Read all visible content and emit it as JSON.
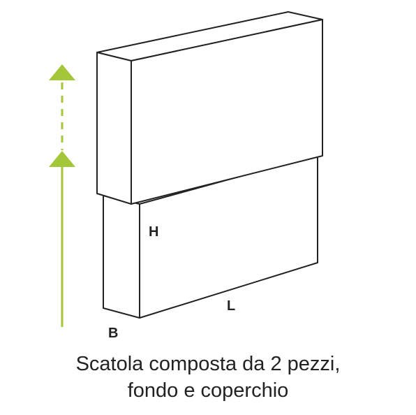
{
  "colors": {
    "outline": "#222222",
    "arrow": "#a4c639",
    "fill": "#ffffff"
  },
  "labels": {
    "height": "H",
    "length": "L",
    "width": "B"
  },
  "caption": {
    "line1": "Scatola composta da 2 pezzi,",
    "line2": "fondo e coperchio"
  }
}
